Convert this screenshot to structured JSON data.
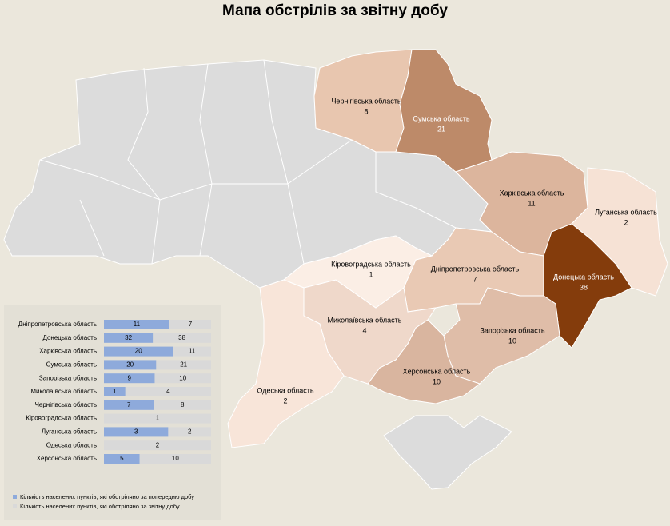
{
  "title": "Мапа обстрілів за звітну добу",
  "regions": [
    {
      "name": "Чернігівська область",
      "value": 8,
      "color": "#e8c6af"
    },
    {
      "name": "Сумська область",
      "value": 21,
      "color": "#bd8a69"
    },
    {
      "name": "Харківська область",
      "value": 11,
      "color": "#dcb59d"
    },
    {
      "name": "Луганська область",
      "value": 2,
      "color": "#f6e2d5"
    },
    {
      "name": "Донецька область",
      "value": 38,
      "color": "#843c0c"
    },
    {
      "name": "Дніпропетровська область",
      "value": 7,
      "color": "#e9c9b4"
    },
    {
      "name": "Запорізька область",
      "value": 10,
      "color": "#dfbda8"
    },
    {
      "name": "Херсонська область",
      "value": 10,
      "color": "#d9b59f"
    },
    {
      "name": "Миколаївська область",
      "value": 4,
      "color": "#efd8ca"
    },
    {
      "name": "Кіровоградська область",
      "value": 1,
      "color": "#fbeee5"
    },
    {
      "name": "Одеська область",
      "value": 2,
      "color": "#f8e5d9"
    }
  ],
  "chart_data": {
    "type": "bar",
    "orientation": "horizontal",
    "stacking": "percent",
    "categories": [
      "Дніпропетровська область",
      "Донецька область",
      "Харківська область",
      "Сумська область",
      "Запорізька область",
      "Миколаївська область",
      "Чернігівська область",
      "Кіровоградська область",
      "Луганська область",
      "Одеська область",
      "Херсонська область"
    ],
    "series": [
      {
        "name": "Кількість населених пунктів, які обстріляно за попередню добу",
        "color": "#8eaadb",
        "values": [
          11,
          32,
          20,
          20,
          9,
          1,
          7,
          null,
          3,
          null,
          5
        ]
      },
      {
        "name": "Кількість населених пунктів, які обстріляно за звітну добу",
        "color": "#d9d9d9",
        "values": [
          7,
          38,
          11,
          21,
          10,
          4,
          8,
          1,
          2,
          2,
          10
        ]
      }
    ]
  }
}
